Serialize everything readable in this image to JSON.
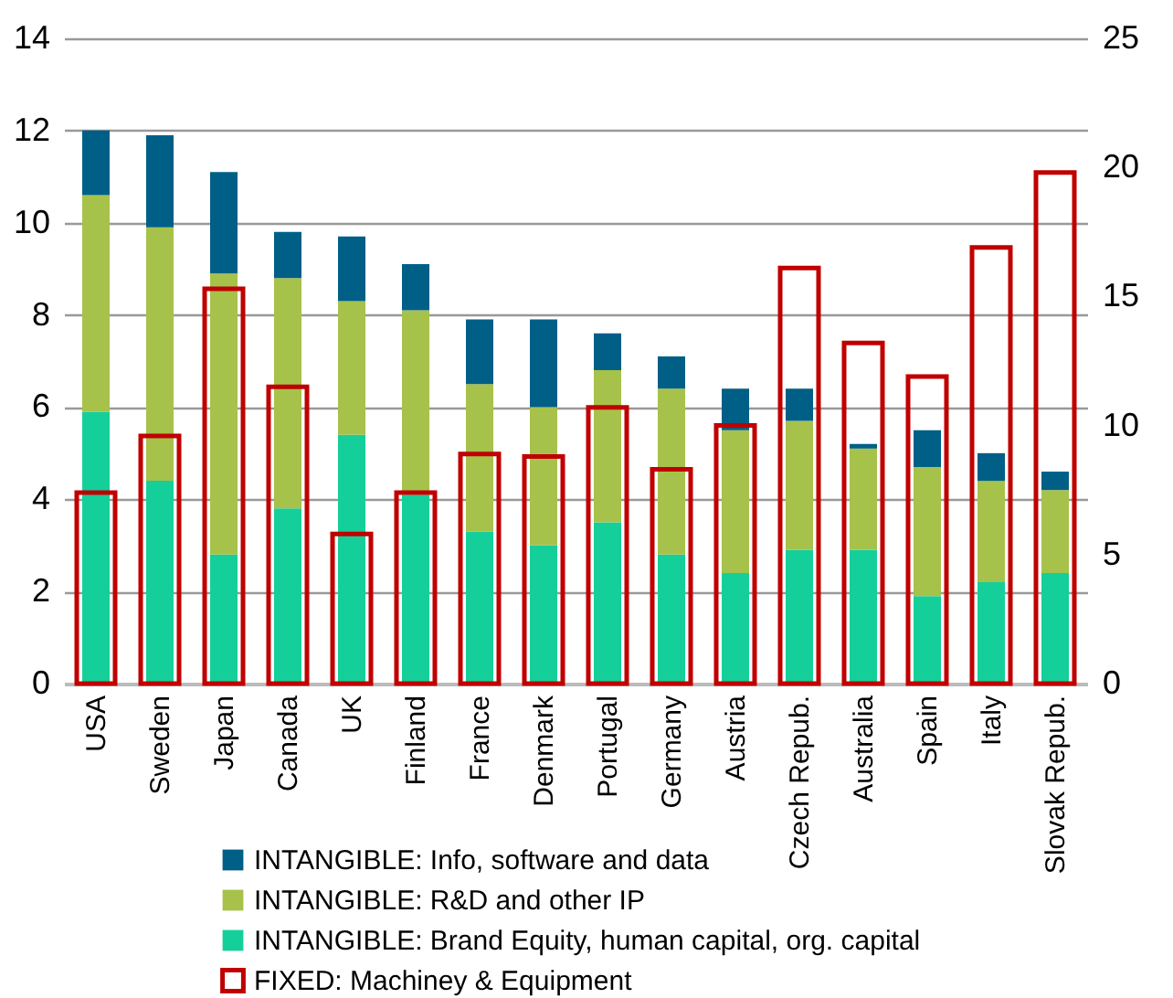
{
  "chart_data": {
    "type": "bar",
    "stacked": true,
    "categories": [
      "USA",
      "Sweden",
      "Japan",
      "Canada",
      "UK",
      "Finland",
      "France",
      "Denmark",
      "Portugal",
      "Germany",
      "Austria",
      "Czech Repub.",
      "Australia",
      "Spain",
      "Italy",
      "Slovak Repub."
    ],
    "series": [
      {
        "name": "INTANGIBLE: Brand Equity, human capital, org. capital",
        "color": "#15cf9b",
        "values": [
          5.9,
          4.4,
          2.8,
          3.8,
          5.4,
          4.1,
          3.3,
          3.0,
          3.5,
          2.8,
          2.4,
          2.9,
          2.9,
          1.9,
          2.2,
          2.4
        ]
      },
      {
        "name": "INTANGIBLE: R&D and other IP",
        "color": "#a6c24a",
        "values": [
          4.7,
          5.5,
          6.1,
          5.0,
          2.9,
          4.0,
          3.2,
          3.0,
          3.3,
          3.6,
          3.1,
          2.8,
          2.2,
          2.8,
          2.2,
          1.8
        ]
      },
      {
        "name": "INTANGIBLE: Info, software and data",
        "color": "#005f87",
        "values": [
          1.4,
          2.0,
          2.2,
          1.0,
          1.4,
          1.0,
          1.4,
          1.9,
          0.8,
          0.7,
          0.9,
          0.7,
          0.1,
          0.8,
          0.6,
          0.4
        ]
      },
      {
        "name": "FIXED: Machiney & Equipment",
        "color": "#c00000",
        "type": "bar",
        "axis": "y2",
        "values": [
          7.4,
          9.6,
          15.3,
          11.5,
          5.8,
          7.4,
          8.9,
          8.8,
          10.7,
          8.3,
          10.0,
          16.1,
          13.2,
          11.9,
          16.9,
          19.8
        ]
      }
    ],
    "ylim": [
      0,
      14
    ],
    "yticks": [
      0,
      2,
      4,
      6,
      8,
      10,
      12,
      14
    ],
    "y2lim": [
      0,
      25
    ],
    "y2ticks": [
      0,
      5,
      10,
      15,
      20,
      25
    ],
    "grid": "y",
    "legend": "bottom"
  }
}
